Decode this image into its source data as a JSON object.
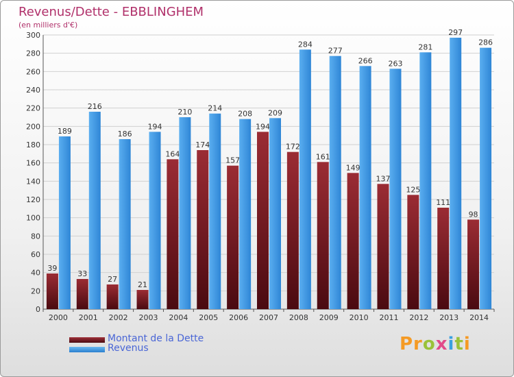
{
  "title": "Revenus/Dette - EBBLINGHEM",
  "subtitle": "(en milliers d'€)",
  "colors": {
    "dette": "#7a1a22",
    "revenus": "#3d97e3",
    "title": "#b0306a",
    "legend_text": "#4a66d6"
  },
  "legend": {
    "dette_label": "Montant de la Dette",
    "revenus_label": "Revenus"
  },
  "logo_text": "Proxiti",
  "chart_data": {
    "type": "bar",
    "title": "Revenus/Dette - EBBLINGHEM",
    "subtitle": "(en milliers d'€)",
    "categories": [
      "2000",
      "2001",
      "2002",
      "2003",
      "2004",
      "2005",
      "2006",
      "2007",
      "2008",
      "2009",
      "2010",
      "2011",
      "2012",
      "2013",
      "2014"
    ],
    "series": [
      {
        "name": "Montant de la Dette",
        "values": [
          39,
          33,
          27,
          21,
          164,
          174,
          157,
          194,
          172,
          161,
          149,
          137,
          125,
          111,
          98
        ]
      },
      {
        "name": "Revenus",
        "values": [
          189,
          216,
          186,
          194,
          210,
          214,
          208,
          209,
          284,
          277,
          266,
          263,
          281,
          297,
          286
        ]
      }
    ],
    "ylim": [
      0,
      300
    ],
    "yticks": [
      0,
      20,
      40,
      60,
      80,
      100,
      120,
      140,
      160,
      180,
      200,
      220,
      240,
      260,
      280,
      300
    ],
    "grid": true,
    "legend_position": "bottom-left"
  }
}
